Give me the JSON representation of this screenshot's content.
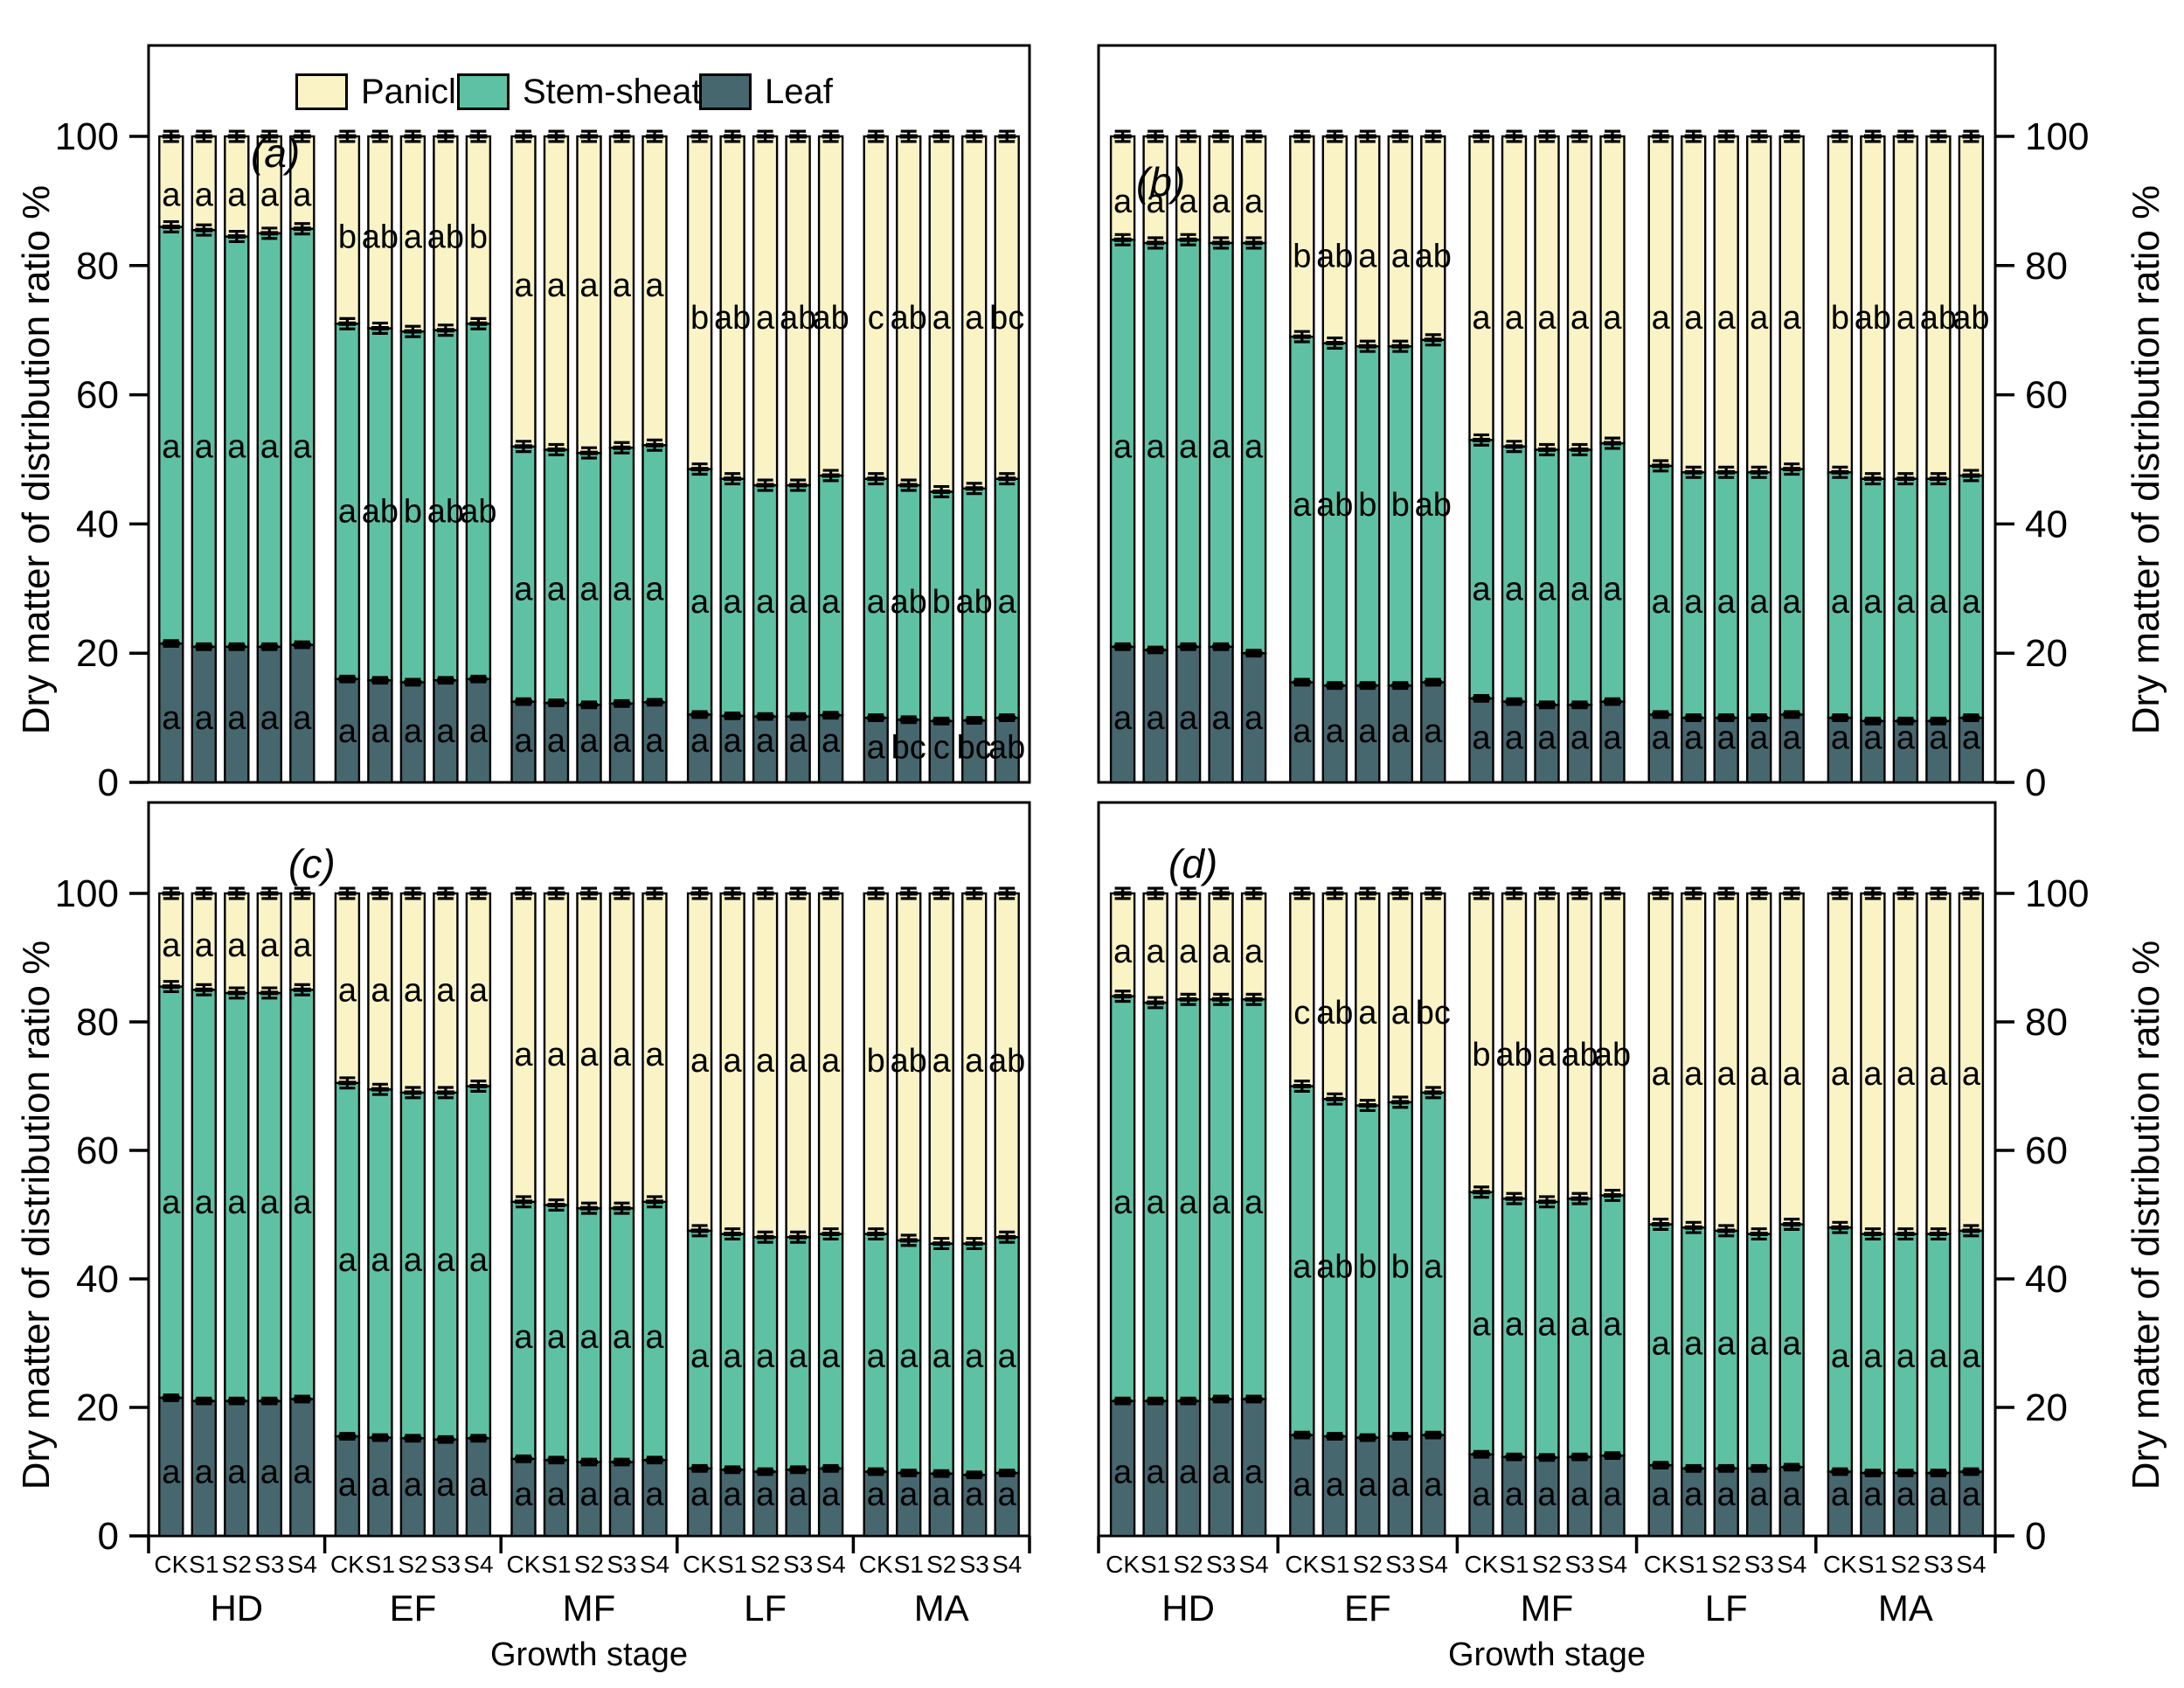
{
  "chart_data": {
    "type": "bar",
    "variant": "stacked-100pct-grouped, 2x2 panel figure with error bars and significance letters",
    "title": "",
    "ylabel": "Dry matter of distribution ratio %",
    "xlabel": "Growth stage",
    "ylim": [
      0,
      100
    ],
    "y_ticks": [
      0,
      20,
      40,
      60,
      80,
      100
    ],
    "grid": "off",
    "legend_position": "top of panel (a)",
    "treatments": [
      "CK",
      "S1",
      "S2",
      "S3",
      "S4"
    ],
    "stage_names": [
      "HD",
      "EF",
      "MF",
      "LF",
      "MA"
    ],
    "legend": [
      {
        "label": "Panicle",
        "color": "#FAF3C6"
      },
      {
        "label": "Stem-sheath",
        "color": "#5FC1A3"
      },
      {
        "label": "Leaf",
        "color": "#47676F"
      }
    ],
    "err": {
      "top": 0.8,
      "stem": 0.8,
      "leaf": 0.45
    },
    "panels": [
      {
        "label": "(a)",
        "groups": [
          {
            "name": "HD",
            "leaf": [
              21.5,
              21,
              21,
              21,
              21.3
            ],
            "stem": [
              64.5,
              64.5,
              63.5,
              64,
              64.4
            ],
            "letters": {
              "panicle": [
                "a",
                "a",
                "a",
                "a",
                "a"
              ],
              "stem": [
                "a",
                "a",
                "a",
                "a",
                "a"
              ],
              "leaf": [
                "a",
                "a",
                "a",
                "a",
                "a"
              ]
            },
            "letter_y": {
              "panicle": 91,
              "stem": 52,
              "leaf": 10
            }
          },
          {
            "name": "EF",
            "leaf": [
              16,
              15.8,
              15.5,
              15.8,
              16
            ],
            "stem": [
              55,
              54.5,
              54.3,
              54.2,
              55
            ],
            "letters": {
              "panicle": [
                "b",
                "ab",
                "a",
                "ab",
                "b"
              ],
              "stem": [
                "a",
                "ab",
                "b",
                "ab",
                "ab"
              ],
              "leaf": [
                "a",
                "a",
                "a",
                "a",
                "a"
              ]
            },
            "letter_y": {
              "panicle": 84.5,
              "stem": 42,
              "leaf": 8
            }
          },
          {
            "name": "MF",
            "leaf": [
              12.5,
              12.3,
              12,
              12.2,
              12.4
            ],
            "stem": [
              39.5,
              39.2,
              39,
              39.6,
              39.8
            ],
            "letters": {
              "panicle": [
                "a",
                "a",
                "a",
                "a",
                "a"
              ],
              "stem": [
                "a",
                "a",
                "a",
                "a",
                "a"
              ],
              "leaf": [
                "a",
                "a",
                "a",
                "a",
                "a"
              ]
            },
            "letter_y": {
              "panicle": 77,
              "stem": 30,
              "leaf": 6.5
            }
          },
          {
            "name": "LF",
            "leaf": [
              10.5,
              10.3,
              10.2,
              10.2,
              10.4
            ],
            "stem": [
              38,
              36.7,
              35.8,
              35.8,
              37.1
            ],
            "letters": {
              "panicle": [
                "b",
                "ab",
                "a",
                "ab",
                "ab"
              ],
              "stem": [
                "a",
                "a",
                "a",
                "a",
                "a"
              ],
              "leaf": [
                "a",
                "a",
                "a",
                "a",
                "a"
              ]
            },
            "letter_y": {
              "panicle": 72,
              "stem": 28,
              "leaf": 6.5
            }
          },
          {
            "name": "MA",
            "leaf": [
              10,
              9.7,
              9.5,
              9.6,
              10
            ],
            "stem": [
              37,
              36.3,
              35.5,
              35.9,
              37
            ],
            "letters": {
              "panicle": [
                "c",
                "ab",
                "a",
                "a",
                "bc"
              ],
              "stem": [
                "a",
                "ab",
                "b",
                "ab",
                "a"
              ],
              "leaf": [
                "a",
                "bc",
                "c",
                "bc",
                "ab"
              ]
            },
            "letter_y": {
              "panicle": 72,
              "stem": 28,
              "leaf": 5.5
            }
          }
        ]
      },
      {
        "label": "(b)",
        "groups": [
          {
            "name": "HD",
            "leaf": [
              21,
              20.5,
              21,
              21,
              20
            ],
            "stem": [
              63,
              63,
              63,
              62.5,
              63.5
            ],
            "letters": {
              "panicle": [
                "a",
                "a",
                "a",
                "a",
                "a"
              ],
              "stem": [
                "a",
                "a",
                "a",
                "a",
                "a"
              ],
              "leaf": [
                "a",
                "a",
                "a",
                "a",
                "a"
              ]
            },
            "letter_y": {
              "panicle": 90,
              "stem": 52,
              "leaf": 10
            }
          },
          {
            "name": "EF",
            "leaf": [
              15.5,
              15,
              15,
              15,
              15.5
            ],
            "stem": [
              53.5,
              53,
              52.5,
              52.5,
              53
            ],
            "letters": {
              "panicle": [
                "b",
                "ab",
                "a",
                "a",
                "ab"
              ],
              "stem": [
                "a",
                "ab",
                "b",
                "b",
                "ab"
              ],
              "leaf": [
                "a",
                "a",
                "a",
                "a",
                "a"
              ]
            },
            "letter_y": {
              "panicle": 81.5,
              "stem": 43,
              "leaf": 8
            }
          },
          {
            "name": "MF",
            "leaf": [
              13,
              12.5,
              12,
              12,
              12.5
            ],
            "stem": [
              40,
              39.5,
              39.5,
              39.5,
              40
            ],
            "letters": {
              "panicle": [
                "a",
                "a",
                "a",
                "a",
                "a"
              ],
              "stem": [
                "a",
                "a",
                "a",
                "a",
                "a"
              ],
              "leaf": [
                "a",
                "a",
                "a",
                "a",
                "a"
              ]
            },
            "letter_y": {
              "panicle": 72,
              "stem": 30,
              "leaf": 7
            }
          },
          {
            "name": "LF",
            "leaf": [
              10.5,
              10,
              10,
              10,
              10.5
            ],
            "stem": [
              38.5,
              38,
              38,
              38,
              38
            ],
            "letters": {
              "panicle": [
                "a",
                "a",
                "a",
                "a",
                "a"
              ],
              "stem": [
                "a",
                "a",
                "a",
                "a",
                "a"
              ],
              "leaf": [
                "a",
                "a",
                "a",
                "a",
                "a"
              ]
            },
            "letter_y": {
              "panicle": 72,
              "stem": 28,
              "leaf": 7
            }
          },
          {
            "name": "MA",
            "leaf": [
              10,
              9.5,
              9.5,
              9.5,
              10
            ],
            "stem": [
              38,
              37.5,
              37.5,
              37.5,
              37.5
            ],
            "letters": {
              "panicle": [
                "b",
                "ab",
                "a",
                "ab",
                "ab"
              ],
              "stem": [
                "a",
                "a",
                "a",
                "a",
                "a"
              ],
              "leaf": [
                "a",
                "a",
                "a",
                "a",
                "a"
              ]
            },
            "letter_y": {
              "panicle": 72,
              "stem": 28,
              "leaf": 7
            }
          }
        ]
      },
      {
        "label": "(c)",
        "groups": [
          {
            "name": "HD",
            "leaf": [
              21.5,
              21,
              21,
              21,
              21.3
            ],
            "stem": [
              64,
              64,
              63.5,
              63.5,
              63.7
            ],
            "letters": {
              "panicle": [
                "a",
                "a",
                "a",
                "a",
                "a"
              ],
              "stem": [
                "a",
                "a",
                "a",
                "a",
                "a"
              ],
              "leaf": [
                "a",
                "a",
                "a",
                "a",
                "a"
              ]
            },
            "letter_y": {
              "panicle": 92,
              "stem": 52,
              "leaf": 10
            }
          },
          {
            "name": "EF",
            "leaf": [
              15.5,
              15.3,
              15.2,
              15,
              15.2
            ],
            "stem": [
              55,
              54.2,
              53.8,
              54,
              54.8
            ],
            "letters": {
              "panicle": [
                "a",
                "a",
                "a",
                "a",
                "a"
              ],
              "stem": [
                "a",
                "a",
                "a",
                "a",
                "a"
              ],
              "leaf": [
                "a",
                "a",
                "a",
                "a",
                "a"
              ]
            },
            "letter_y": {
              "panicle": 85,
              "stem": 43,
              "leaf": 8
            }
          },
          {
            "name": "MF",
            "leaf": [
              12,
              11.8,
              11.5,
              11.5,
              11.8
            ],
            "stem": [
              40,
              39.7,
              39.5,
              39.5,
              40.2
            ],
            "letters": {
              "panicle": [
                "a",
                "a",
                "a",
                "a",
                "a"
              ],
              "stem": [
                "a",
                "a",
                "a",
                "a",
                "a"
              ],
              "leaf": [
                "a",
                "a",
                "a",
                "a",
                "a"
              ]
            },
            "letter_y": {
              "panicle": 75,
              "stem": 31,
              "leaf": 6.5
            }
          },
          {
            "name": "LF",
            "leaf": [
              10.5,
              10.3,
              10,
              10.3,
              10.5
            ],
            "stem": [
              37,
              36.7,
              36.5,
              36.2,
              36.5
            ],
            "letters": {
              "panicle": [
                "a",
                "a",
                "a",
                "a",
                "a"
              ],
              "stem": [
                "a",
                "a",
                "a",
                "a",
                "a"
              ],
              "leaf": [
                "a",
                "a",
                "a",
                "a",
                "a"
              ]
            },
            "letter_y": {
              "panicle": 74,
              "stem": 28,
              "leaf": 6.5
            }
          },
          {
            "name": "MA",
            "leaf": [
              10,
              9.8,
              9.7,
              9.5,
              9.8
            ],
            "stem": [
              37,
              36.2,
              35.8,
              36,
              36.7
            ],
            "letters": {
              "panicle": [
                "b",
                "ab",
                "a",
                "a",
                "ab"
              ],
              "stem": [
                "a",
                "a",
                "a",
                "a",
                "a"
              ],
              "leaf": [
                "a",
                "a",
                "a",
                "a",
                "a"
              ]
            },
            "letter_y": {
              "panicle": 74,
              "stem": 28,
              "leaf": 6.5
            }
          }
        ]
      },
      {
        "label": "(d)",
        "groups": [
          {
            "name": "HD",
            "leaf": [
              21,
              21,
              21,
              21.3,
              21.3
            ],
            "stem": [
              63,
              62,
              62.5,
              62.2,
              62.2
            ],
            "letters": {
              "panicle": [
                "a",
                "a",
                "a",
                "a",
                "a"
              ],
              "stem": [
                "a",
                "a",
                "a",
                "a",
                "a"
              ],
              "leaf": [
                "a",
                "a",
                "a",
                "a",
                "a"
              ]
            },
            "letter_y": {
              "panicle": 91,
              "stem": 52,
              "leaf": 10
            }
          },
          {
            "name": "EF",
            "leaf": [
              15.7,
              15.5,
              15.3,
              15.5,
              15.7
            ],
            "stem": [
              54.3,
              52.5,
              51.7,
              52,
              53.3
            ],
            "letters": {
              "panicle": [
                "c",
                "ab",
                "a",
                "a",
                "bc"
              ],
              "stem": [
                "a",
                "ab",
                "b",
                "b",
                "a"
              ],
              "leaf": [
                "a",
                "a",
                "a",
                "a",
                "a"
              ]
            },
            "letter_y": {
              "panicle": 81.5,
              "stem": 42,
              "leaf": 8
            }
          },
          {
            "name": "MF",
            "leaf": [
              12.7,
              12.3,
              12.2,
              12.3,
              12.5
            ],
            "stem": [
              40.8,
              40.2,
              39.8,
              40.2,
              40.5
            ],
            "letters": {
              "panicle": [
                "b",
                "ab",
                "a",
                "ab",
                "ab"
              ],
              "stem": [
                "a",
                "a",
                "a",
                "a",
                "a"
              ],
              "leaf": [
                "a",
                "a",
                "a",
                "a",
                "a"
              ]
            },
            "letter_y": {
              "panicle": 75,
              "stem": 33,
              "leaf": 6.5
            }
          },
          {
            "name": "LF",
            "leaf": [
              11,
              10.5,
              10.5,
              10.5,
              10.7
            ],
            "stem": [
              37.5,
              37.5,
              37,
              36.5,
              37.8
            ],
            "letters": {
              "panicle": [
                "a",
                "a",
                "a",
                "a",
                "a"
              ],
              "stem": [
                "a",
                "a",
                "a",
                "a",
                "a"
              ],
              "leaf": [
                "a",
                "a",
                "a",
                "a",
                "a"
              ]
            },
            "letter_y": {
              "panicle": 72,
              "stem": 30,
              "leaf": 6.5
            }
          },
          {
            "name": "MA",
            "leaf": [
              10,
              9.8,
              9.8,
              9.8,
              10
            ],
            "stem": [
              38,
              37.2,
              37.2,
              37.2,
              37.5
            ],
            "letters": {
              "panicle": [
                "a",
                "a",
                "a",
                "a",
                "a"
              ],
              "stem": [
                "a",
                "a",
                "a",
                "a",
                "a"
              ],
              "leaf": [
                "a",
                "a",
                "a",
                "a",
                "a"
              ]
            },
            "letter_y": {
              "panicle": 72,
              "stem": 28,
              "leaf": 6.5
            }
          }
        ]
      }
    ]
  }
}
